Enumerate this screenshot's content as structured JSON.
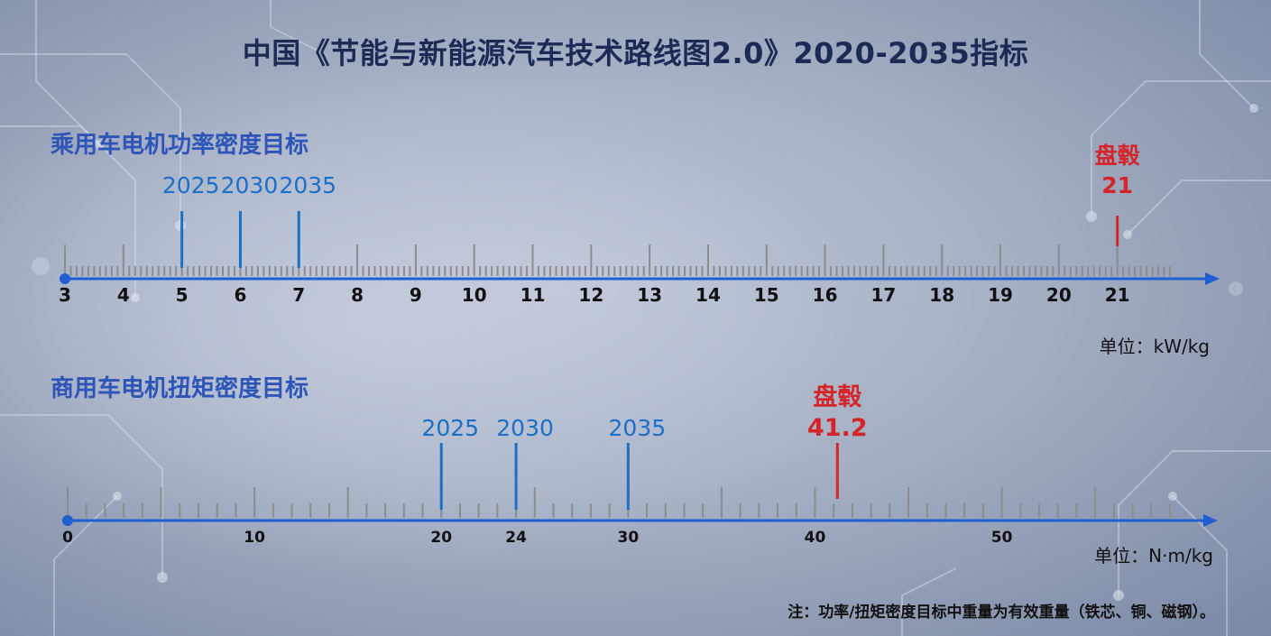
{
  "title": "中国《节能与新能源汽车技术路线图2.0》2020-2035指标",
  "colors": {
    "title": "#1c2b55",
    "section": "#2d55b8",
    "axis": "#1f5fd1",
    "tick": "#8c8c8c",
    "target": "#1a6fc9",
    "benchmark": "#d4262a"
  },
  "charts": [
    {
      "title": "乘用车电机功率密度目标",
      "unit": "单位：kW/kg",
      "axis": {
        "min": 3,
        "max": 21.9,
        "minor_step": 0.1,
        "major_step": 1,
        "labels": [
          "3",
          "4",
          "5",
          "6",
          "7",
          "8",
          "9",
          "10",
          "11",
          "12",
          "13",
          "14",
          "15",
          "16",
          "17",
          "18",
          "19",
          "20",
          "21"
        ],
        "label_values": [
          3,
          4,
          5,
          6,
          7,
          8,
          9,
          10,
          11,
          12,
          13,
          14,
          15,
          16,
          17,
          18,
          19,
          20,
          21
        ]
      },
      "targets": [
        {
          "year": "2025",
          "value": 5
        },
        {
          "year": "2030",
          "value": 6
        },
        {
          "year": "2035",
          "value": 7
        }
      ],
      "benchmark": {
        "name": "盘毂",
        "value_label": "21",
        "value": 21
      }
    },
    {
      "title": "商用车电机扭矩密度目标",
      "unit": "单位：N·m/kg",
      "axis": {
        "min": 0,
        "max": 59,
        "minor_step": 1,
        "major_step": 5,
        "labels": [
          "0",
          "10",
          "20",
          "24",
          "30",
          "40",
          "50"
        ],
        "label_values": [
          0,
          10,
          20,
          24,
          30,
          40,
          50
        ]
      },
      "targets": [
        {
          "year": "2025",
          "value": 20
        },
        {
          "year": "2030",
          "value": 24
        },
        {
          "year": "2035",
          "value": 30
        }
      ],
      "benchmark": {
        "name": "盘毂",
        "value_label": "41.2",
        "value": 41.2
      }
    }
  ],
  "note": "注：功率/扭矩密度目标中重量为有效重量（铁芯、铜、磁钢）。"
}
